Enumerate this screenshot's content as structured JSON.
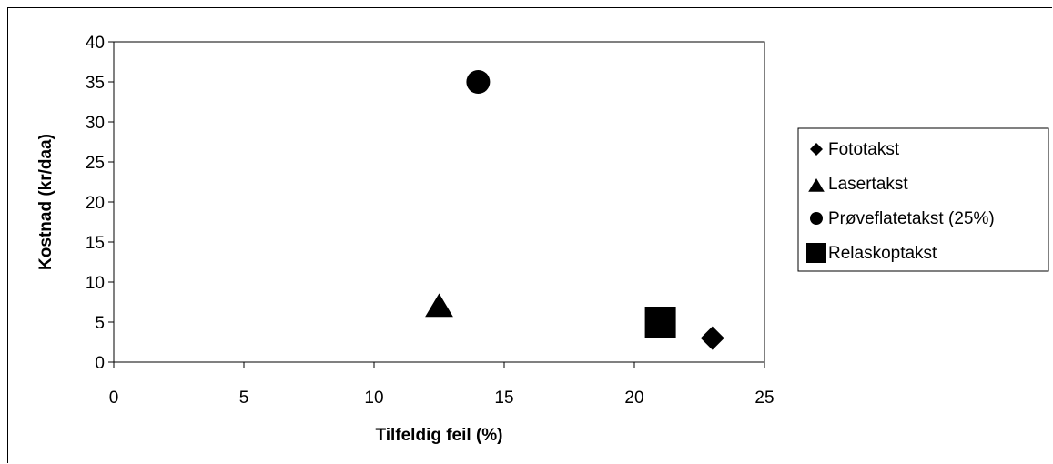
{
  "chart_data": {
    "type": "scatter",
    "title": "",
    "xlabel": "Tilfeldig feil (%)",
    "ylabel": "Kostnad (kr/daa)",
    "xlim": [
      0,
      25
    ],
    "ylim": [
      0,
      40
    ],
    "xticks": [
      "0",
      "5",
      "10",
      "15",
      "20",
      "25"
    ],
    "yticks": [
      "0",
      "5",
      "10",
      "15",
      "20",
      "25",
      "30",
      "35",
      "40"
    ],
    "grid": false,
    "legend_position": "right",
    "series": [
      {
        "name": "Fototakst",
        "marker": "diamond",
        "color": "#000000",
        "x": [
          23
        ],
        "y": [
          3
        ]
      },
      {
        "name": "Lasertakst",
        "marker": "triangle",
        "color": "#000000",
        "x": [
          12.5
        ],
        "y": [
          7
        ]
      },
      {
        "name": "Prøveflatetakst (25%)",
        "marker": "circle",
        "color": "#000000",
        "x": [
          14
        ],
        "y": [
          35
        ]
      },
      {
        "name": "Relaskoptakst",
        "marker": "square",
        "color": "#000000",
        "x": [
          21
        ],
        "y": [
          5
        ]
      }
    ]
  }
}
